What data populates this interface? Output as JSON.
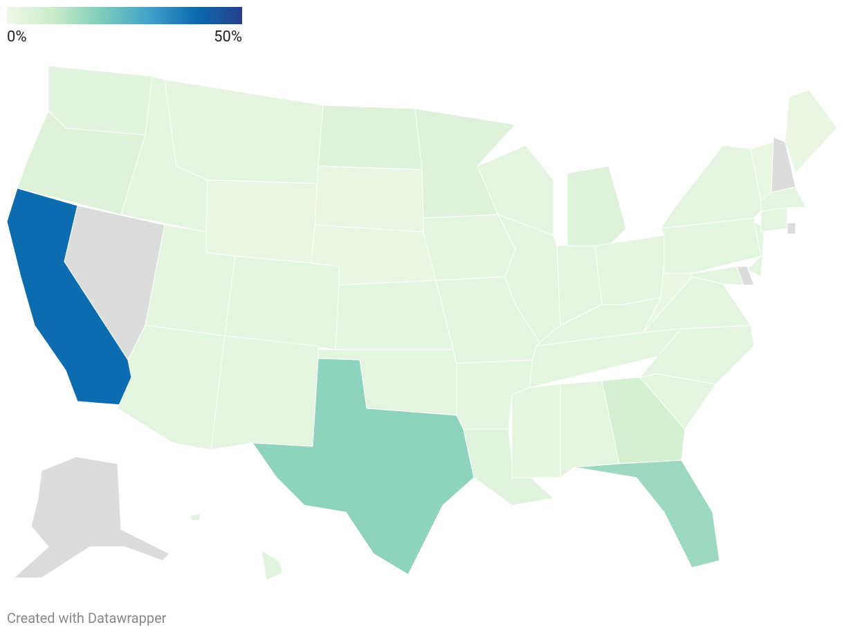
{
  "chart_data": {
    "type": "choropleth",
    "colorlim": [
      0,
      50
    ],
    "colorticks": [
      {
        "value": 0,
        "label": "0%"
      },
      {
        "value": 50,
        "label": "50%"
      }
    ],
    "colors": [
      "#f0f9e8",
      "#c9ebc9",
      "#7fcdbb",
      "#43a2ca",
      "#0b6cb0",
      "#263e8c"
    ],
    "missing_color": "#dcdcdc",
    "values": [
      4,
      5,
      40,
      null,
      3,
      3,
      2,
      3,
      3,
      3,
      3,
      5,
      2,
      2,
      3,
      3,
      18,
      5,
      3,
      3,
      3,
      4,
      3,
      3,
      5,
      3,
      3,
      3,
      3,
      3,
      3,
      7,
      16,
      3,
      3,
      3,
      2,
      3,
      3,
      3,
      3,
      null,
      2,
      null,
      2,
      3,
      3,
      null,
      null,
      4,
      4
    ],
    "footer": "Created with Datawrapper"
  }
}
